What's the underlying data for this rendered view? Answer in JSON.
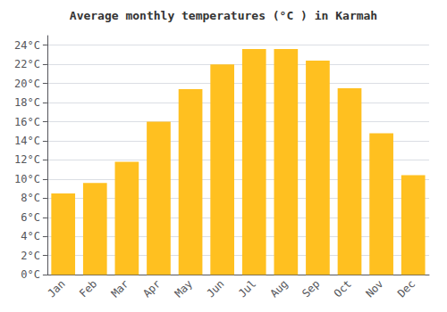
{
  "chart_data": {
    "type": "bar",
    "title": "Average monthly temperatures (°C ) in Karmah",
    "categories": [
      "Jan",
      "Feb",
      "Mar",
      "Apr",
      "May",
      "Jun",
      "Jul",
      "Aug",
      "Sep",
      "Oct",
      "Nov",
      "Dec"
    ],
    "values": [
      8.5,
      9.6,
      11.8,
      16.0,
      19.4,
      22.0,
      23.6,
      23.6,
      22.4,
      19.5,
      14.8,
      10.4
    ],
    "color": "#FFC020",
    "ylim": [
      0,
      25
    ],
    "yticks": [
      {
        "value": 0,
        "label": "0°C"
      },
      {
        "value": 2,
        "label": "2°C"
      },
      {
        "value": 4,
        "label": "4°C"
      },
      {
        "value": 6,
        "label": "6°C"
      },
      {
        "value": 8,
        "label": "8°C"
      },
      {
        "value": 10,
        "label": "10°C"
      },
      {
        "value": 12,
        "label": "12°C"
      },
      {
        "value": 14,
        "label": "14°C"
      },
      {
        "value": 16,
        "label": "16°C"
      },
      {
        "value": 18,
        "label": "18°C"
      },
      {
        "value": 20,
        "label": "20°C"
      },
      {
        "value": 22,
        "label": "22°C"
      },
      {
        "value": 24,
        "label": "24°C"
      }
    ],
    "grid": true
  }
}
